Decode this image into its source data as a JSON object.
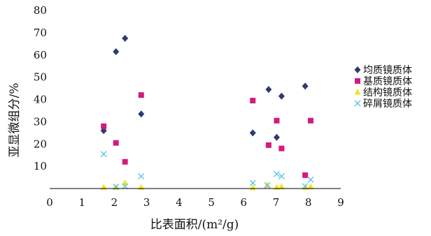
{
  "chart_data": {
    "type": "scatter",
    "title": "",
    "xlabel": "比表面积/(m²/g)",
    "ylabel": "亚显微组分/%",
    "xlim": [
      0,
      9
    ],
    "ylim": [
      0,
      80
    ],
    "x_ticks": [
      0,
      1,
      2,
      3,
      4,
      5,
      6,
      7,
      8,
      9
    ],
    "y_ticks": [
      10,
      20,
      30,
      40,
      50,
      60,
      70,
      80
    ],
    "grid": false,
    "legend_position": "right",
    "series": [
      {
        "name": "均质镜质体",
        "marker": "diamond",
        "color": "#2e3a6e",
        "points": [
          [
            1.67,
            26
          ],
          [
            2.05,
            61.5
          ],
          [
            2.33,
            67.5
          ],
          [
            2.83,
            33.5
          ],
          [
            6.28,
            25
          ],
          [
            6.77,
            44.5
          ],
          [
            7.02,
            23
          ],
          [
            7.17,
            41.5
          ],
          [
            7.9,
            46
          ]
        ]
      },
      {
        "name": "基质镜质体",
        "marker": "square",
        "color": "#d41a7f",
        "points": [
          [
            1.67,
            28
          ],
          [
            2.05,
            20.5
          ],
          [
            2.33,
            12
          ],
          [
            2.83,
            42
          ],
          [
            6.28,
            39.5
          ],
          [
            6.77,
            19.5
          ],
          [
            7.02,
            30.5
          ],
          [
            7.17,
            18
          ],
          [
            7.9,
            6
          ],
          [
            8.07,
            30.5
          ]
        ]
      },
      {
        "name": "结构镜质体",
        "marker": "triangle",
        "color": "#f2e41a",
        "points": [
          [
            1.67,
            0.5
          ],
          [
            2.05,
            0.5
          ],
          [
            2.33,
            2.5
          ],
          [
            2.83,
            0.5
          ],
          [
            6.28,
            0.3
          ],
          [
            6.73,
            1.5
          ],
          [
            7.02,
            0.5
          ],
          [
            7.17,
            0.8
          ],
          [
            7.9,
            0.5
          ],
          [
            8.07,
            0.8
          ]
        ]
      },
      {
        "name": "碎屑镜质体",
        "marker": "x",
        "color": "#5fc3ec",
        "points": [
          [
            1.67,
            15.5
          ],
          [
            2.05,
            0.8
          ],
          [
            2.33,
            1
          ],
          [
            2.83,
            5.5
          ],
          [
            6.28,
            2.5
          ],
          [
            6.73,
            1.5
          ],
          [
            7.02,
            6.5
          ],
          [
            7.17,
            5.5
          ],
          [
            7.9,
            1
          ],
          [
            8.07,
            4
          ]
        ]
      }
    ]
  }
}
